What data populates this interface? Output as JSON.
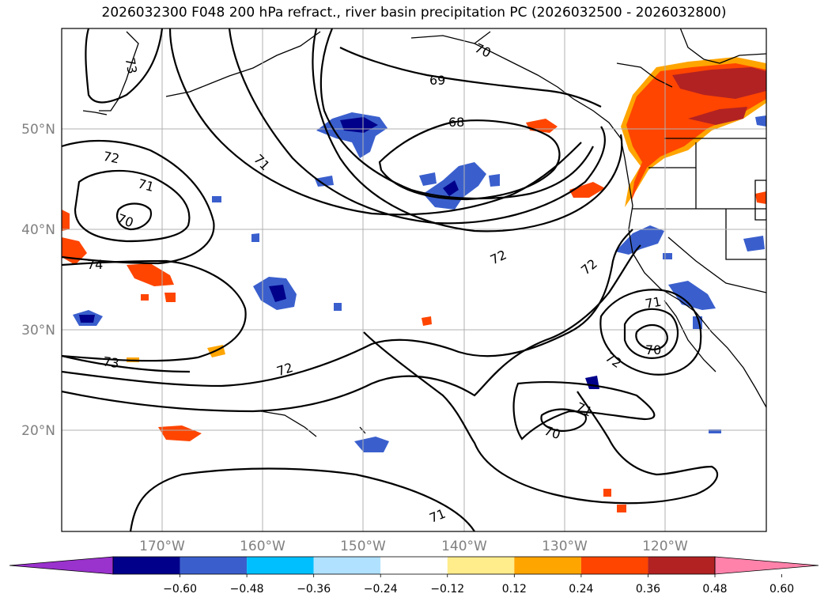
{
  "title": "2026032300 F048 200 hPa refract., river basin precipitation PC (2026032500 - 2026032800)",
  "lat_labels": [
    "50°N",
    "40°N",
    "30°N",
    "20°N"
  ],
  "lon_labels": [
    "170°W",
    "160°W",
    "150°W",
    "140°W",
    "130°W",
    "120°W"
  ],
  "contour_labels": [
    {
      "text": "73",
      "key": "c73a"
    },
    {
      "text": "70",
      "key": "c70a"
    },
    {
      "text": "69",
      "key": "c69"
    },
    {
      "text": "68",
      "key": "c68"
    },
    {
      "text": "72",
      "key": "c72a"
    },
    {
      "text": "71",
      "key": "c71a"
    },
    {
      "text": "70",
      "key": "c70b"
    },
    {
      "text": "71",
      "key": "c71b"
    },
    {
      "text": "74",
      "key": "c74"
    },
    {
      "text": "72",
      "key": "c72b"
    },
    {
      "text": "72",
      "key": "c72c"
    },
    {
      "text": "73",
      "key": "c73b"
    },
    {
      "text": "72",
      "key": "c72d"
    },
    {
      "text": "71",
      "key": "c71c"
    },
    {
      "text": "70",
      "key": "c70c"
    },
    {
      "text": "72",
      "key": "c72e"
    },
    {
      "text": "71",
      "key": "c71d"
    },
    {
      "text": "70",
      "key": "c70d"
    },
    {
      "text": "71",
      "key": "c71e"
    }
  ],
  "colorbar": {
    "ticks": [
      "−0.60",
      "−0.48",
      "−0.36",
      "−0.24",
      "−0.12",
      "0.12",
      "0.24",
      "0.36",
      "0.48",
      "0.60"
    ],
    "colors": [
      "#9a32cd",
      "#00008b",
      "#3a5fcd",
      "#00bfff",
      "#b0e2ff",
      "#ffffff",
      "#ffec8b",
      "#ffa500",
      "#ff4500",
      "#b22222",
      "#ff82ab"
    ]
  }
}
